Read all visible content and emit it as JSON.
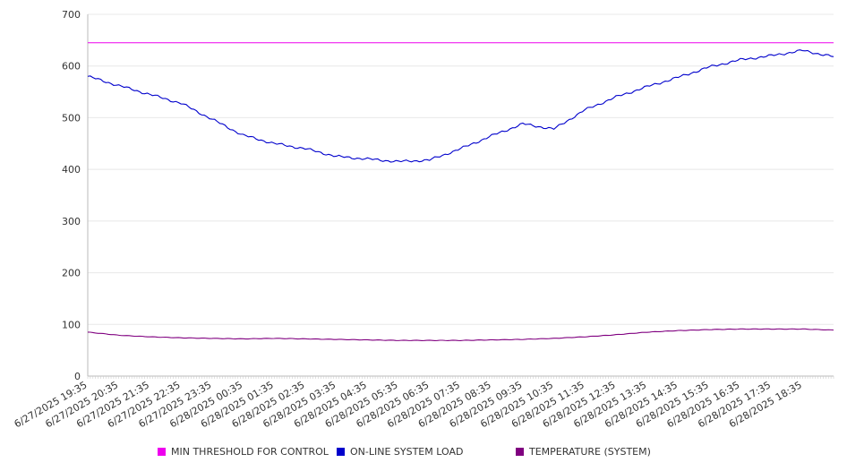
{
  "chart_data": {
    "type": "line",
    "title": "",
    "xlabel": "",
    "ylabel": "",
    "ylim": [
      0,
      700
    ],
    "yticks": [
      0,
      100,
      200,
      300,
      400,
      500,
      600,
      700
    ],
    "grid": true,
    "legend_position": "bottom",
    "x_tick_labels": [
      "6/27/2025 19:35",
      "6/27/2025 20:35",
      "6/27/2025 21:35",
      "6/27/2025 22:35",
      "6/27/2025 23:35",
      "6/28/2025 00:35",
      "6/28/2025 01:35",
      "6/28/2025 02:35",
      "6/28/2025 03:35",
      "6/28/2025 04:35",
      "6/28/2025 05:35",
      "6/28/2025 06:35",
      "6/28/2025 07:35",
      "6/28/2025 08:35",
      "6/28/2025 09:35",
      "6/28/2025 10:35",
      "6/28/2025 11:35",
      "6/28/2025 12:35",
      "6/28/2025 13:35",
      "6/28/2025 14:35",
      "6/28/2025 15:35",
      "6/28/2025 16:35",
      "6/28/2025 17:35",
      "6/28/2025 18:35"
    ],
    "x_start": "6/27/2025 19:35",
    "x_end": "6/28/2025 19:35",
    "series": [
      {
        "name": "MIN THRESHOLD FOR CONTROL",
        "color": "#ee00ee",
        "values": [
          645,
          645,
          645,
          645,
          645,
          645,
          645,
          645,
          645,
          645,
          645,
          645,
          645,
          645,
          645,
          645,
          645,
          645,
          645,
          645,
          645,
          645,
          645,
          645,
          645
        ]
      },
      {
        "name": "ON-LINE SYSTEM LOAD",
        "color": "#0000cc",
        "values": [
          580,
          562,
          545,
          528,
          497,
          466,
          450,
          440,
          425,
          420,
          415,
          418,
          440,
          465,
          488,
          478,
          515,
          540,
          560,
          578,
          598,
          612,
          620,
          630,
          618
        ]
      },
      {
        "name": "TEMPERATURE (SYSTEM)",
        "color": "#800080",
        "values": [
          85,
          79,
          76,
          74,
          73,
          72,
          73,
          72,
          71,
          70,
          69,
          69,
          69,
          70,
          71,
          73,
          76,
          80,
          85,
          88,
          90,
          91,
          91,
          91,
          89
        ]
      }
    ]
  }
}
